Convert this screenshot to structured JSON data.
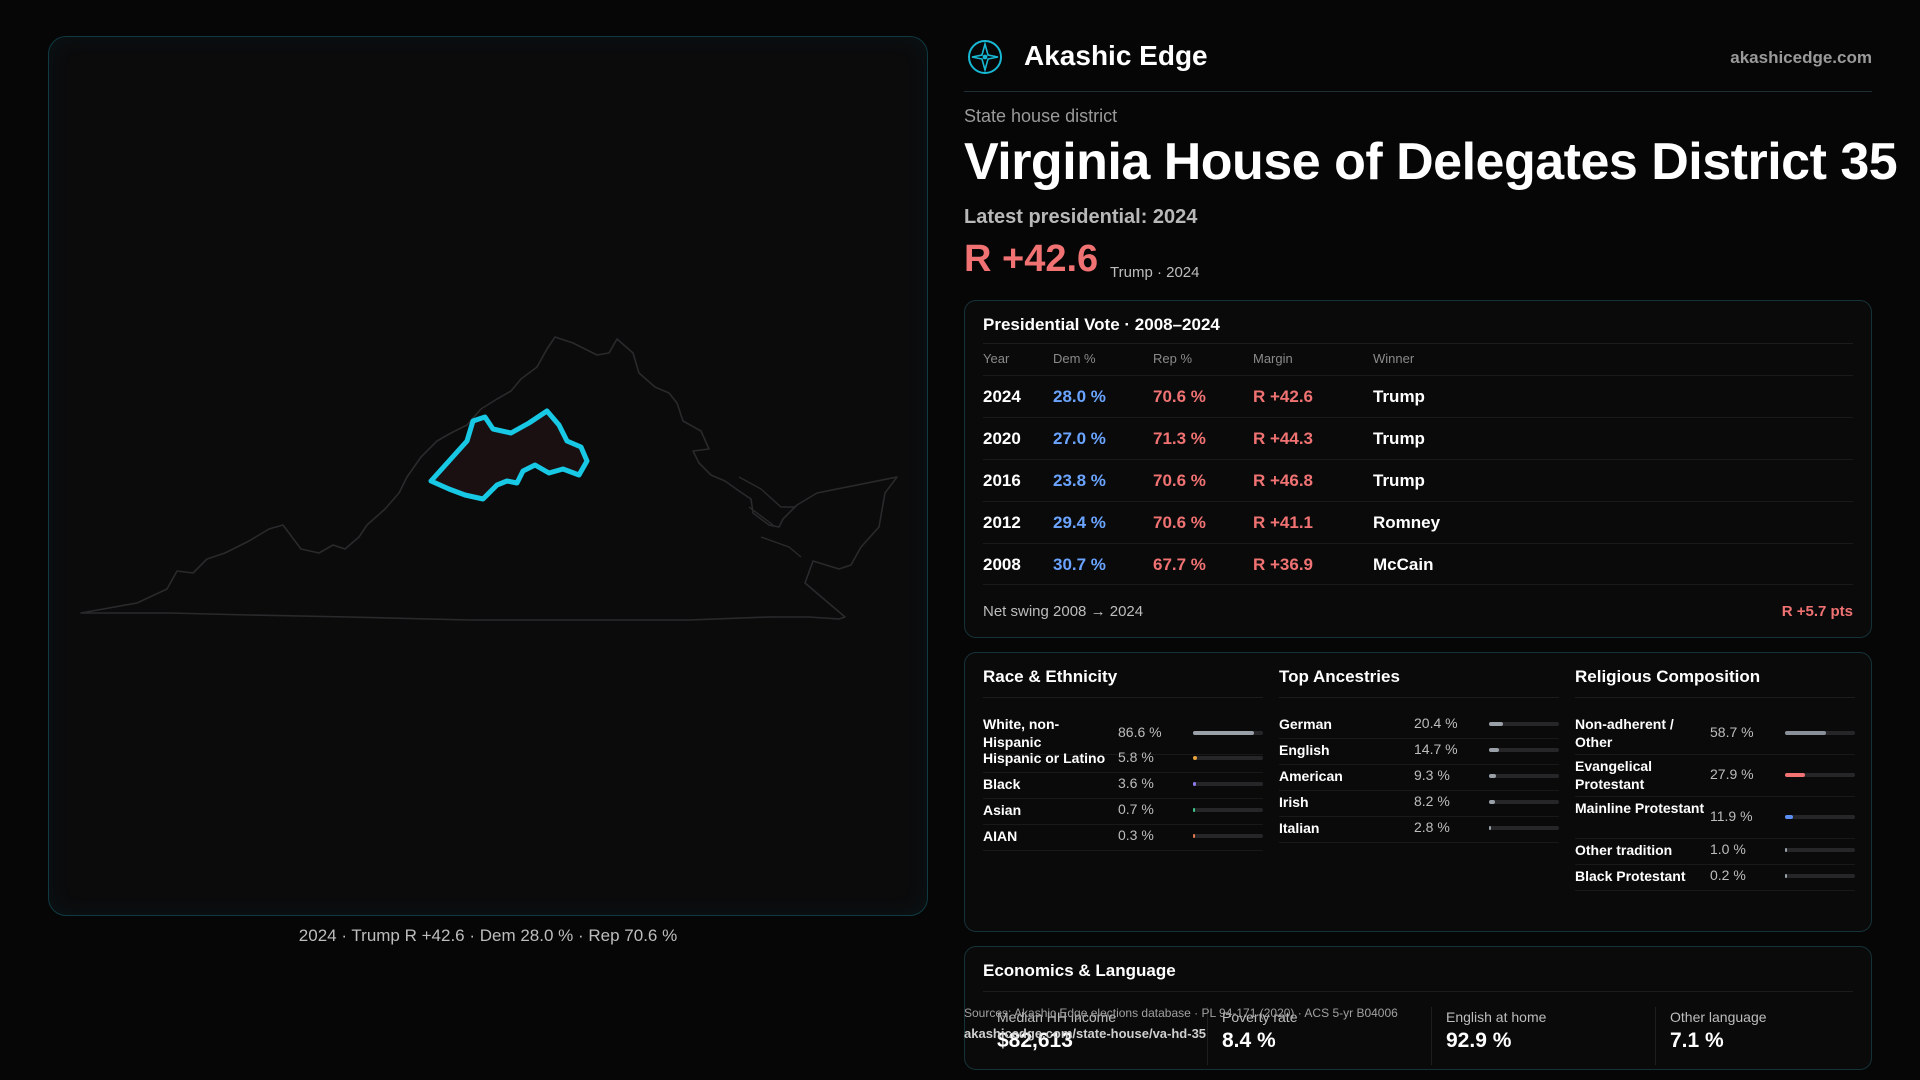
{
  "brand": {
    "name": "Akashic Edge",
    "url": "akashicedge.com",
    "logo": "compass-rose-icon"
  },
  "header": {
    "kicker": "State house district",
    "title": "Virginia House of Delegates District 35",
    "latest": "Latest presidential: 2024",
    "margin": "R +42.6",
    "margin_sub": "Trump · 2024"
  },
  "map": {
    "caption": "2024 · Trump R +42.6 · Dem 28.0 % · Rep 70.6 %",
    "state_outline_icon": "virginia-outline",
    "highlight_color": "#18c9e6"
  },
  "presidential": {
    "title": "Presidential Vote · 2008–2024",
    "headers": {
      "year": "Year",
      "dem": "Dem %",
      "rep": "Rep %",
      "margin": "Margin",
      "winner": "Winner"
    },
    "rows": [
      {
        "year": "2024",
        "dem": "28.0 %",
        "rep": "70.6 %",
        "margin": "R +42.6",
        "winner": "Trump"
      },
      {
        "year": "2020",
        "dem": "27.0 %",
        "rep": "71.3 %",
        "margin": "R +44.3",
        "winner": "Trump"
      },
      {
        "year": "2016",
        "dem": "23.8 %",
        "rep": "70.6 %",
        "margin": "R +46.8",
        "winner": "Trump"
      },
      {
        "year": "2012",
        "dem": "29.4 %",
        "rep": "70.6 %",
        "margin": "R +41.1",
        "winner": "Romney"
      },
      {
        "year": "2008",
        "dem": "30.7 %",
        "rep": "67.7 %",
        "margin": "R +36.9",
        "winner": "McCain"
      }
    ],
    "swing_label": "Net swing 2008 → 2024",
    "swing_value": "R +5.7 pts"
  },
  "demographics": {
    "race": {
      "title": "Race & Ethnicity",
      "items": [
        {
          "label": "White, non-Hispanic",
          "value": "86.6 %",
          "pct": 86.6,
          "color": "#9aa0a8"
        },
        {
          "label": "Hispanic or Latino",
          "value": "5.8 %",
          "pct": 5.8,
          "color": "#e8a33a"
        },
        {
          "label": "Black",
          "value": "3.6 %",
          "pct": 3.6,
          "color": "#8a7cf0"
        },
        {
          "label": "Asian",
          "value": "0.7 %",
          "pct": 0.7,
          "color": "#3ac98a"
        },
        {
          "label": "AIAN",
          "value": "0.3 %",
          "pct": 0.3,
          "color": "#e07a50"
        }
      ]
    },
    "ancestry": {
      "title": "Top Ancestries",
      "items": [
        {
          "label": "German",
          "value": "20.4 %",
          "pct": 20.4,
          "color": "#9aa0a8"
        },
        {
          "label": "English",
          "value": "14.7 %",
          "pct": 14.7,
          "color": "#9aa0a8"
        },
        {
          "label": "American",
          "value": "9.3 %",
          "pct": 9.3,
          "color": "#9aa0a8"
        },
        {
          "label": "Irish",
          "value": "8.2 %",
          "pct": 8.2,
          "color": "#9aa0a8"
        },
        {
          "label": "Italian",
          "value": "2.8 %",
          "pct": 2.8,
          "color": "#9aa0a8"
        }
      ]
    },
    "religion": {
      "title": "Religious Composition",
      "items": [
        {
          "label": "Non-adherent / Other",
          "value": "58.7 %",
          "pct": 58.7,
          "color": "#8a9099"
        },
        {
          "label": "Evangelical Protestant",
          "value": "27.9 %",
          "pct": 27.9,
          "color": "#f07272"
        },
        {
          "label": "Mainline Protestant",
          "value": "11.9 %",
          "pct": 11.9,
          "color": "#5a8ef0"
        },
        {
          "label": "Other tradition",
          "value": "1.0 %",
          "pct": 1.0,
          "color": "#9aa0a8"
        },
        {
          "label": "Black Protestant",
          "value": "0.2 %",
          "pct": 0.2,
          "color": "#9aa0a8"
        }
      ]
    }
  },
  "economics": {
    "title": "Economics & Language",
    "items": [
      {
        "label": "Median HH income",
        "value": "$82,613"
      },
      {
        "label": "Poverty rate",
        "value": "8.4 %"
      },
      {
        "label": "English at home",
        "value": "92.9 %"
      },
      {
        "label": "Other language",
        "value": "7.1 %"
      }
    ]
  },
  "footer": {
    "source": "Sources: Akashic Edge elections database · PL 94-171 (2020) · ACS 5-yr B04006",
    "url": "akashicedge.com/state-house/va-hd-35"
  }
}
